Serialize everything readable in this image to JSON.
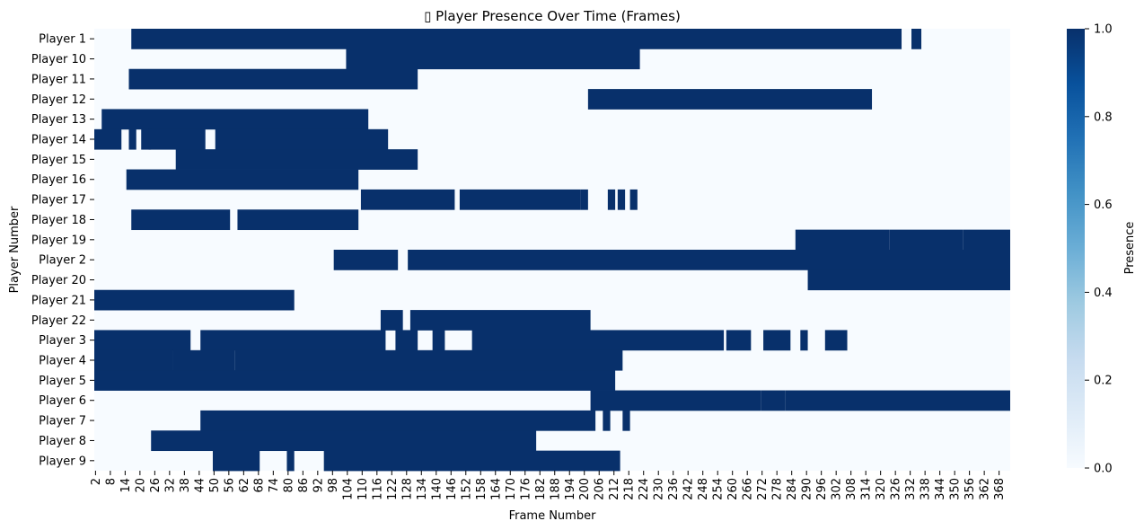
{
  "chart_data": {
    "type": "heatmap",
    "title": "▯ Player Presence Over Time (Frames)",
    "xlabel": "Frame Number",
    "ylabel": "Player Number",
    "x_range": [
      2,
      372
    ],
    "x_ticks": [
      2,
      8,
      14,
      20,
      26,
      32,
      38,
      44,
      50,
      56,
      62,
      68,
      74,
      80,
      86,
      92,
      98,
      104,
      110,
      116,
      122,
      128,
      134,
      140,
      146,
      152,
      158,
      164,
      170,
      176,
      182,
      188,
      194,
      200,
      206,
      212,
      218,
      224,
      230,
      236,
      242,
      248,
      254,
      260,
      266,
      272,
      278,
      284,
      290,
      296,
      302,
      308,
      314,
      320,
      326,
      332,
      338,
      344,
      350,
      356,
      362,
      368
    ],
    "rows": [
      {
        "label": "Player 1",
        "present": [
          [
            17,
            328
          ],
          [
            333,
            336
          ]
        ]
      },
      {
        "label": "Player 10",
        "present": [
          [
            104,
            222
          ]
        ]
      },
      {
        "label": "Player 11",
        "present": [
          [
            16,
            132
          ]
        ]
      },
      {
        "label": "Player 12",
        "present": [
          [
            202,
            316
          ]
        ]
      },
      {
        "label": "Player 13",
        "present": [
          [
            5,
            112
          ]
        ]
      },
      {
        "label": "Player 14",
        "present": [
          [
            2,
            12
          ],
          [
            16,
            18
          ],
          [
            21,
            24
          ],
          [
            24,
            46
          ],
          [
            51,
            120
          ]
        ]
      },
      {
        "label": "Player 15",
        "present": [
          [
            35,
            132
          ]
        ]
      },
      {
        "label": "Player 16",
        "present": [
          [
            15,
            108
          ]
        ]
      },
      {
        "label": "Player 17",
        "present": [
          [
            110,
            147
          ],
          [
            150,
            198
          ],
          [
            199,
            201
          ],
          [
            210,
            212
          ],
          [
            214,
            216
          ],
          [
            219,
            221
          ]
        ]
      },
      {
        "label": "Player 18",
        "present": [
          [
            17,
            56
          ],
          [
            60,
            108
          ]
        ]
      },
      {
        "label": "Player 19",
        "present": [
          [
            286,
            323
          ],
          [
            324,
            353
          ],
          [
            354,
            374
          ]
        ]
      },
      {
        "label": "Player 2",
        "present": [
          [
            99,
            124
          ],
          [
            129,
            373
          ]
        ]
      },
      {
        "label": "Player 20",
        "present": [
          [
            291,
            374
          ]
        ]
      },
      {
        "label": "Player 21",
        "present": [
          [
            2,
            82
          ]
        ]
      },
      {
        "label": "Player 22",
        "present": [
          [
            118,
            126
          ],
          [
            130,
            202
          ]
        ]
      },
      {
        "label": "Player 3",
        "present": [
          [
            2,
            40
          ],
          [
            45,
            119
          ],
          [
            124,
            132
          ],
          [
            139,
            143
          ],
          [
            155,
            256
          ],
          [
            258,
            267
          ],
          [
            273,
            283
          ],
          [
            288,
            290
          ],
          [
            298,
            306
          ]
        ]
      },
      {
        "label": "Player 4",
        "present": [
          [
            2,
            33
          ],
          [
            34,
            58
          ],
          [
            59,
            215
          ]
        ]
      },
      {
        "label": "Player 5",
        "present": [
          [
            2,
            212
          ]
        ]
      },
      {
        "label": "Player 6",
        "present": [
          [
            203,
            271
          ],
          [
            272,
            281
          ],
          [
            282,
            374
          ]
        ]
      },
      {
        "label": "Player 7",
        "present": [
          [
            45,
            204
          ],
          [
            208,
            210
          ],
          [
            216,
            218
          ]
        ]
      },
      {
        "label": "Player 8",
        "present": [
          [
            25,
            180
          ]
        ]
      },
      {
        "label": "Player 9",
        "present": [
          [
            50,
            68
          ],
          [
            80,
            82
          ],
          [
            95,
            214
          ]
        ]
      }
    ],
    "colorbar": {
      "label": "Presence",
      "ticks": [
        "0.0",
        "0.2",
        "0.4",
        "0.6",
        "0.8",
        "1.0"
      ],
      "range": [
        0,
        1
      ]
    },
    "colors": {
      "absent": "#f7fbff",
      "present": "#08306b",
      "scale": [
        "#f7fbff",
        "#deebf7",
        "#c6dbef",
        "#9ecae1",
        "#6baed6",
        "#4292c6",
        "#2171b5",
        "#08519c",
        "#08306b"
      ]
    },
    "grid": false,
    "legend": "colorbar-right"
  }
}
